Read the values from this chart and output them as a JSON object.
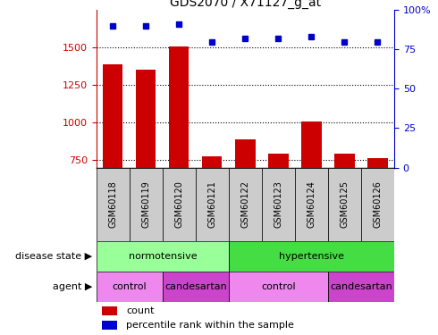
{
  "title": "GDS2070 / X71127_g_at",
  "samples": [
    "GSM60118",
    "GSM60119",
    "GSM60120",
    "GSM60121",
    "GSM60122",
    "GSM60123",
    "GSM60124",
    "GSM60125",
    "GSM60126"
  ],
  "counts": [
    1390,
    1350,
    1510,
    775,
    890,
    795,
    1005,
    790,
    760
  ],
  "percentiles": [
    90,
    90,
    91,
    80,
    82,
    82,
    83,
    80,
    80
  ],
  "ylim_left": [
    700,
    1750
  ],
  "ylim_right": [
    0,
    100
  ],
  "yticks_left": [
    750,
    1000,
    1250,
    1500
  ],
  "yticks_right": [
    0,
    25,
    50,
    75,
    100
  ],
  "bar_color": "#cc0000",
  "dot_color": "#0000cc",
  "norm_color": "#99ff99",
  "hyp_color": "#44dd44",
  "control_color": "#ee88ee",
  "candesartan_color": "#cc44cc",
  "label_bg": "#cccccc",
  "disease_state_label": "disease state",
  "agent_label": "agent",
  "normotensive_label": "normotensive",
  "hypertensive_label": "hypertensive",
  "control_label": "control",
  "candesartan_label": "candesartan",
  "count_label": "count",
  "percentile_label": "percentile rank within the sample",
  "tick_color_left": "#cc0000",
  "tick_color_right": "#0000cc"
}
